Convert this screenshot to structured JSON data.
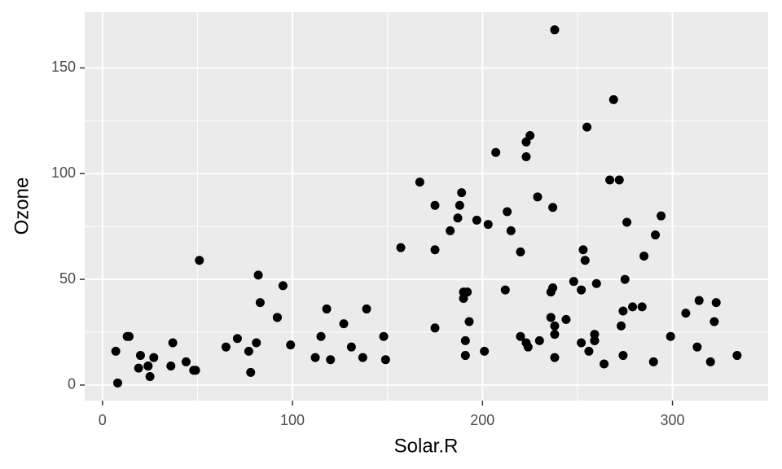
{
  "chart_data": {
    "type": "scatter",
    "x_label": "Solar.R",
    "y_label": "Ozone",
    "color": "#000000",
    "panel_color": "#EBEBEB",
    "grid": true,
    "xlim": [
      -9.35,
      350.35
    ],
    "ylim": [
      -7.35,
      176.35
    ],
    "xticks": [
      0,
      100,
      200,
      300
    ],
    "yticks": [
      0,
      50,
      100,
      150
    ],
    "x_minor_breaks": [
      50,
      150,
      250
    ],
    "y_minor_breaks": [
      25,
      75,
      125
    ],
    "x": [
      190,
      118,
      149,
      313,
      299,
      99,
      19,
      256,
      290,
      274,
      65,
      334,
      307,
      78,
      322,
      44,
      8,
      320,
      25,
      92,
      13,
      252,
      223,
      279,
      127,
      291,
      323,
      148,
      191,
      284,
      37,
      120,
      137,
      269,
      248,
      236,
      175,
      314,
      276,
      267,
      272,
      175,
      264,
      175,
      48,
      260,
      274,
      285,
      187,
      220,
      7,
      294,
      223,
      81,
      82,
      213,
      275,
      253,
      254,
      83,
      24,
      77,
      255,
      229,
      207,
      192,
      273,
      157,
      71,
      51,
      115,
      244,
      190,
      259,
      36,
      212,
      238,
      215,
      203,
      225,
      237,
      188,
      167,
      197,
      183,
      189,
      95,
      92,
      252,
      220,
      230,
      259,
      236,
      259,
      238,
      24,
      112,
      237,
      224,
      27,
      238,
      201,
      238,
      14,
      139,
      49,
      20,
      193,
      191,
      131,
      223
    ],
    "values": [
      41,
      36,
      12,
      18,
      23,
      19,
      8,
      16,
      11,
      14,
      18,
      14,
      34,
      6,
      30,
      11,
      1,
      11,
      4,
      32,
      23,
      45,
      115,
      37,
      29,
      71,
      39,
      23,
      21,
      37,
      20,
      12,
      13,
      135,
      49,
      32,
      64,
      40,
      77,
      97,
      97,
      85,
      10,
      27,
      7,
      48,
      35,
      61,
      79,
      63,
      16,
      80,
      108,
      20,
      52,
      82,
      50,
      64,
      59,
      39,
      9,
      16,
      122,
      89,
      110,
      44,
      28,
      65,
      22,
      59,
      23,
      31,
      44,
      21,
      9,
      45,
      168,
      73,
      76,
      118,
      84,
      85,
      96,
      78,
      73,
      91,
      47,
      32,
      20,
      23,
      21,
      24,
      44,
      21,
      28,
      9,
      13,
      46,
      18,
      13,
      24,
      16,
      13,
      23,
      36,
      7,
      14,
      30,
      14,
      18,
      20
    ]
  }
}
